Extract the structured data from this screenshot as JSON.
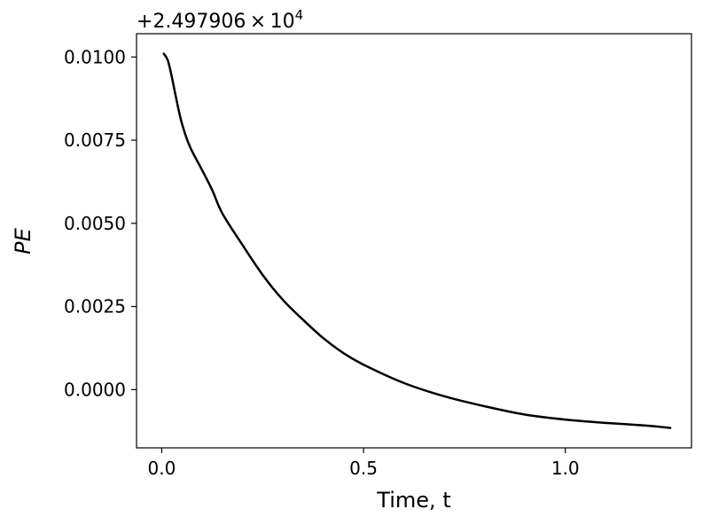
{
  "chart_data": {
    "type": "line",
    "title": "",
    "xlabel": "Time, t",
    "ylabel": "PE",
    "y_offset_label": "+2.497906 × 10",
    "y_offset_exponent": "4",
    "xlim": [
      -0.0625,
      1.3125
    ],
    "ylim": [
      -0.00175,
      0.0107
    ],
    "grid": false,
    "legend": "none",
    "line_color": "#000000",
    "x_ticks": [
      {
        "value": 0.0,
        "label": "0.0"
      },
      {
        "value": 0.5,
        "label": "0.5"
      },
      {
        "value": 1.0,
        "label": "1.0"
      }
    ],
    "y_ticks": [
      {
        "value": 0.0,
        "label": "0.0000"
      },
      {
        "value": 0.0025,
        "label": "0.0025"
      },
      {
        "value": 0.005,
        "label": "0.0050"
      },
      {
        "value": 0.0075,
        "label": "0.0075"
      },
      {
        "value": 0.01,
        "label": "0.0100"
      }
    ],
    "series": [
      {
        "x": [
          0.005,
          0.015,
          0.025,
          0.035,
          0.05,
          0.07,
          0.1,
          0.125,
          0.15,
          0.2,
          0.25,
          0.3,
          0.35,
          0.4,
          0.45,
          0.5,
          0.6,
          0.7,
          0.8,
          0.9,
          1.0,
          1.1,
          1.2,
          1.26
        ],
        "y": [
          0.0101,
          0.0099,
          0.0094,
          0.0088,
          0.008,
          0.0073,
          0.0066,
          0.006,
          0.0053,
          0.00435,
          0.00345,
          0.0027,
          0.0021,
          0.00155,
          0.0011,
          0.00075,
          0.0002,
          -0.0002,
          -0.0005,
          -0.00075,
          -0.0009,
          -0.001,
          -0.00108,
          -0.00115
        ]
      }
    ]
  }
}
